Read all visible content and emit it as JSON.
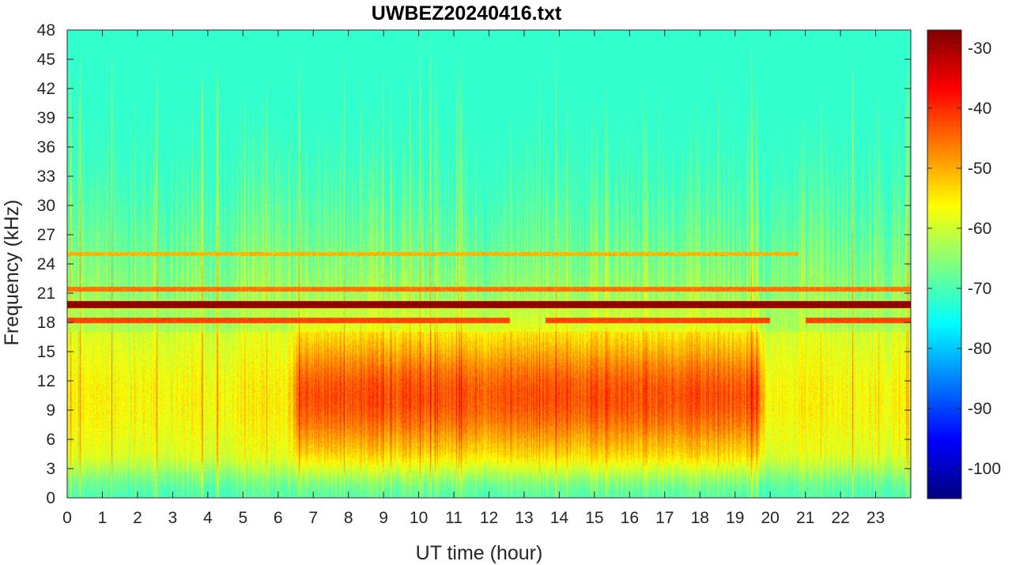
{
  "chart_data": {
    "type": "heatmap",
    "title": "UWBEZ20240416.txt",
    "xlabel": "UT time (hour)",
    "ylabel": "Frequency (kHz)",
    "xlim": [
      0,
      24
    ],
    "ylim": [
      0,
      48
    ],
    "x_ticks": [
      "0",
      "1",
      "2",
      "3",
      "4",
      "5",
      "6",
      "7",
      "8",
      "9",
      "10",
      "11",
      "12",
      "13",
      "14",
      "15",
      "16",
      "17",
      "18",
      "19",
      "20",
      "21",
      "22",
      "23"
    ],
    "y_ticks": [
      "0",
      "3",
      "6",
      "9",
      "12",
      "15",
      "18",
      "21",
      "24",
      "27",
      "30",
      "33",
      "36",
      "39",
      "42",
      "45",
      "48"
    ],
    "colorbar": {
      "colormap": "jet",
      "clim": [
        -105,
        -27
      ],
      "ticks": [
        "-30",
        "-40",
        "-50",
        "-60",
        "-70",
        "-80",
        "-90",
        "-100"
      ]
    },
    "features": {
      "strong_line_khz": 19.8,
      "secondary_lines_khz": [
        18.2,
        21.4,
        25.0
      ],
      "broadband_peak_khz_range": [
        5,
        17
      ],
      "broadband_peak_hours": [
        6.5,
        19.8
      ]
    }
  }
}
